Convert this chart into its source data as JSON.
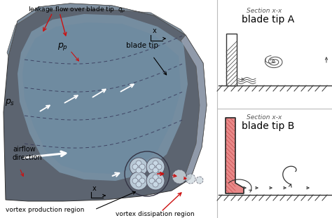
{
  "bg_color": "#ffffff",
  "blade_dark": "#5c6370",
  "blade_mid": "#7a8898",
  "blade_light": "#a0aab8",
  "blade_tip_face": "#9aaab8",
  "flow_blue": "#7090a8",
  "flow_blue2": "#8aafc8",
  "dashed_line_color": "#444455",
  "white": "#ffffff",
  "red": "#cc1111",
  "black": "#111111",
  "gray": "#666677",
  "vortex_fill": "#c8d4dc",
  "vortex_dashed_fill": "#d8e4ea",
  "label_leakage": "leakage flow over blade tip  $q_p$",
  "label_ps": "$p_s$",
  "label_pp": "$p_p$",
  "label_blade_tip": "blade tip",
  "label_x": "x",
  "label_airflow": "airflow\ndirection",
  "label_vortex_prod": "vortex production region",
  "label_vortex_diss": "vortex dissipation region",
  "section_a": "Section x-x",
  "title_a": "blade tip A",
  "section_b": "Section x-x",
  "title_b": "blade tip B",
  "blade_fill_b": "#e88888"
}
